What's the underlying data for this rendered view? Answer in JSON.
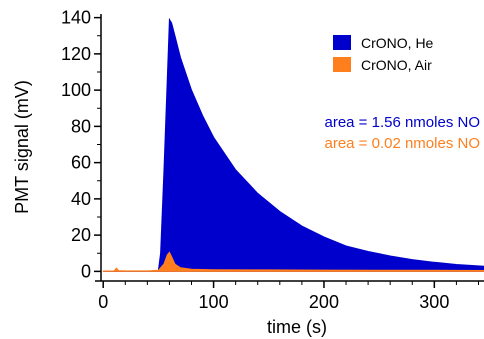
{
  "chart_data": {
    "type": "area",
    "xlabel": "time (s)",
    "ylabel": "PMT signal (mV)",
    "xlim": [
      -2,
      345
    ],
    "ylim": [
      -2,
      142
    ],
    "x_ticks": [
      0,
      100,
      200,
      300
    ],
    "y_ticks": [
      0,
      20,
      40,
      60,
      80,
      100,
      120,
      140
    ],
    "legend_position": "top-right",
    "series": [
      {
        "name": "CrONO, He",
        "color": "#0000cc",
        "x": [
          0,
          20,
          40,
          50,
          52,
          55,
          58,
          60,
          62,
          65,
          70,
          80,
          90,
          100,
          120,
          140,
          160,
          180,
          200,
          220,
          240,
          260,
          280,
          300,
          320,
          345
        ],
        "y": [
          0,
          0,
          0,
          0.5,
          10,
          55,
          105,
          139,
          137,
          130,
          118,
          100,
          86,
          74,
          56,
          43,
          33,
          25,
          19,
          14,
          11,
          8.5,
          6.5,
          5,
          3.8,
          2.8
        ]
      },
      {
        "name": "CrONO, Air",
        "color": "#ff7f1e",
        "x": [
          0,
          10,
          12,
          14,
          20,
          40,
          50,
          55,
          58,
          60,
          62,
          65,
          70,
          80,
          100,
          150,
          200,
          250,
          300,
          345
        ],
        "y": [
          0.2,
          0.3,
          1.8,
          0.4,
          0.3,
          0.3,
          0.6,
          4,
          9,
          10.5,
          8,
          4,
          2,
          1.2,
          0.9,
          0.8,
          0.7,
          0.6,
          0.6,
          0.5
        ]
      }
    ],
    "annotations": [
      {
        "text": "area = 1.56 nmoles NO",
        "color": "#0000cc"
      },
      {
        "text": "area = 0.02 nmoles NO",
        "color": "#ff7f1e"
      }
    ]
  }
}
